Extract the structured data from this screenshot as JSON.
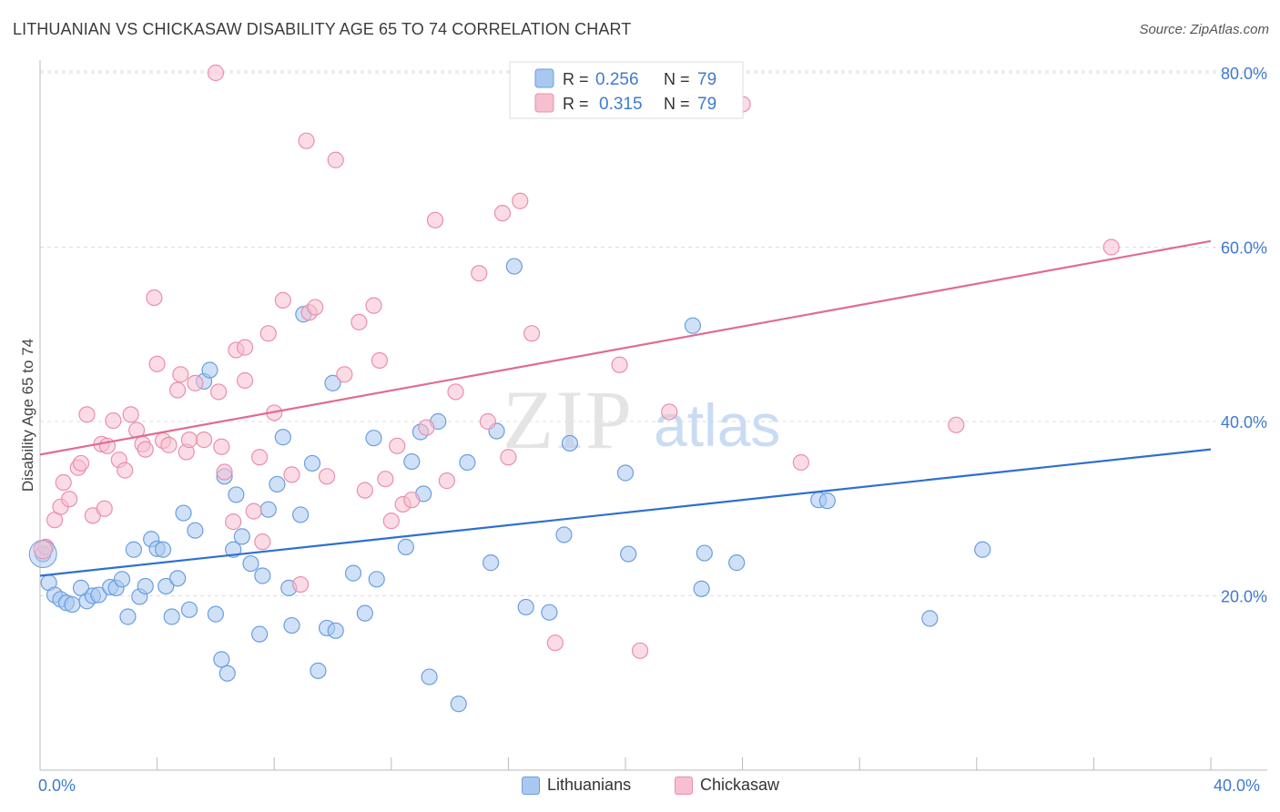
{
  "title": "LITHUANIAN VS CHICKASAW DISABILITY AGE 65 TO 74 CORRELATION CHART",
  "source": "Source: ZipAtlas.com",
  "watermark": {
    "zip": "ZIP",
    "atlas": "atlas"
  },
  "colors": {
    "blue_fill": "#a9c8f0",
    "blue_stroke": "#6b9ee0",
    "blue_line": "#2f6fd0",
    "pink_fill": "#f7bfd0",
    "pink_stroke": "#e98fae",
    "pink_line": "#e06b93",
    "tick_label": "#3f7ad1",
    "grid": "#dddddd"
  },
  "legend_top": {
    "rows": [
      {
        "r_label": "R =",
        "r_value": "0.256",
        "n_label": "N =",
        "n_value": "79",
        "series": "blue"
      },
      {
        "r_label": "R =",
        "r_value": "0.315",
        "n_label": "N =",
        "n_value": "79",
        "series": "pink"
      }
    ]
  },
  "legend_bottom": [
    {
      "label": "Lithuanians",
      "series": "blue"
    },
    {
      "label": "Chickasaw",
      "series": "pink"
    }
  ],
  "chart_data": {
    "type": "scatter",
    "title": "LITHUANIAN VS CHICKASAW DISABILITY AGE 65 TO 74 CORRELATION CHART",
    "xlabel": "",
    "ylabel": "Disability Age 65 to 74",
    "xlim": [
      0,
      40
    ],
    "ylim": [
      0,
      82
    ],
    "x_tick_labels": {
      "left": "0.0%",
      "right": "40.0%"
    },
    "y_ticks": [
      {
        "value": 20,
        "label": "20.0%"
      },
      {
        "value": 40,
        "label": "40.0%"
      },
      {
        "value": 60,
        "label": "60.0%"
      },
      {
        "value": 80,
        "label": "80.0%"
      }
    ],
    "grid": true,
    "legend_placement": "top-center",
    "series": [
      {
        "name": "Lithuanians",
        "color": "blue",
        "trend": {
          "x0": 0,
          "y0": 22.3,
          "x1": 40,
          "y1": 36.8
        },
        "points": [
          [
            0.1,
            24.8
          ],
          [
            0.3,
            21.5
          ],
          [
            0.5,
            20.1
          ],
          [
            0.7,
            19.6
          ],
          [
            0.9,
            19.2
          ],
          [
            1.1,
            19.0
          ],
          [
            1.4,
            20.9
          ],
          [
            1.6,
            19.4
          ],
          [
            1.8,
            20.0
          ],
          [
            2.0,
            20.1
          ],
          [
            2.4,
            21.0
          ],
          [
            2.6,
            20.9
          ],
          [
            2.8,
            21.9
          ],
          [
            3.0,
            17.6
          ],
          [
            3.2,
            25.3
          ],
          [
            3.4,
            19.9
          ],
          [
            3.6,
            21.1
          ],
          [
            3.8,
            26.5
          ],
          [
            4.0,
            25.4
          ],
          [
            4.2,
            25.3
          ],
          [
            4.3,
            21.1
          ],
          [
            4.5,
            17.6
          ],
          [
            4.7,
            22.0
          ],
          [
            4.9,
            29.5
          ],
          [
            5.1,
            18.4
          ],
          [
            5.3,
            27.5
          ],
          [
            5.6,
            44.6
          ],
          [
            5.8,
            45.9
          ],
          [
            6.0,
            17.9
          ],
          [
            6.2,
            12.7
          ],
          [
            6.4,
            11.1
          ],
          [
            6.3,
            33.7
          ],
          [
            6.6,
            25.3
          ],
          [
            6.7,
            31.6
          ],
          [
            6.9,
            26.8
          ],
          [
            7.2,
            23.7
          ],
          [
            7.5,
            15.6
          ],
          [
            7.6,
            22.3
          ],
          [
            7.8,
            29.9
          ],
          [
            8.1,
            32.8
          ],
          [
            8.3,
            38.2
          ],
          [
            8.5,
            20.9
          ],
          [
            8.6,
            16.6
          ],
          [
            8.9,
            29.3
          ],
          [
            9.0,
            52.3
          ],
          [
            9.3,
            35.2
          ],
          [
            9.5,
            11.4
          ],
          [
            9.8,
            16.3
          ],
          [
            10.0,
            44.4
          ],
          [
            10.1,
            16.0
          ],
          [
            10.7,
            22.6
          ],
          [
            11.1,
            18.0
          ],
          [
            11.4,
            38.1
          ],
          [
            11.5,
            21.9
          ],
          [
            12.5,
            25.6
          ],
          [
            12.7,
            35.4
          ],
          [
            13.0,
            38.8
          ],
          [
            13.1,
            31.7
          ],
          [
            13.3,
            10.7
          ],
          [
            13.6,
            40.0
          ],
          [
            14.3,
            7.6
          ],
          [
            14.6,
            35.3
          ],
          [
            15.4,
            23.8
          ],
          [
            15.6,
            38.9
          ],
          [
            16.2,
            57.8
          ],
          [
            16.6,
            18.7
          ],
          [
            17.4,
            18.1
          ],
          [
            17.9,
            27.0
          ],
          [
            18.1,
            37.5
          ],
          [
            20.0,
            34.1
          ],
          [
            20.1,
            24.8
          ],
          [
            22.3,
            51.0
          ],
          [
            22.6,
            20.8
          ],
          [
            22.7,
            24.9
          ],
          [
            23.8,
            23.8
          ],
          [
            26.6,
            31.0
          ],
          [
            26.9,
            30.9
          ],
          [
            30.4,
            17.4
          ],
          [
            32.2,
            25.3
          ]
        ]
      },
      {
        "name": "Chickasaw",
        "color": "pink",
        "trend": {
          "x0": 0,
          "y0": 36.2,
          "x1": 40,
          "y1": 60.7
        },
        "points": [
          [
            0.2,
            25.6
          ],
          [
            0.5,
            28.7
          ],
          [
            0.7,
            30.2
          ],
          [
            0.8,
            33.0
          ],
          [
            1.0,
            31.1
          ],
          [
            1.3,
            34.7
          ],
          [
            1.4,
            35.2
          ],
          [
            1.6,
            40.8
          ],
          [
            1.8,
            29.2
          ],
          [
            2.1,
            37.4
          ],
          [
            2.2,
            30.0
          ],
          [
            2.3,
            37.2
          ],
          [
            2.5,
            40.1
          ],
          [
            2.7,
            35.6
          ],
          [
            2.9,
            34.4
          ],
          [
            3.1,
            40.8
          ],
          [
            3.3,
            39.0
          ],
          [
            3.5,
            37.4
          ],
          [
            3.6,
            36.8
          ],
          [
            3.9,
            54.2
          ],
          [
            4.0,
            46.6
          ],
          [
            4.2,
            37.8
          ],
          [
            4.4,
            37.3
          ],
          [
            4.7,
            43.6
          ],
          [
            4.8,
            45.4
          ],
          [
            5.0,
            36.5
          ],
          [
            5.1,
            37.9
          ],
          [
            5.3,
            44.4
          ],
          [
            5.6,
            37.9
          ],
          [
            6.0,
            80.0
          ],
          [
            6.1,
            43.4
          ],
          [
            6.2,
            37.1
          ],
          [
            6.3,
            34.2
          ],
          [
            6.6,
            28.5
          ],
          [
            6.7,
            48.2
          ],
          [
            7.0,
            48.5
          ],
          [
            7.0,
            44.7
          ],
          [
            7.3,
            29.7
          ],
          [
            7.5,
            35.9
          ],
          [
            7.6,
            26.2
          ],
          [
            7.8,
            50.1
          ],
          [
            8.0,
            41.0
          ],
          [
            8.3,
            53.9
          ],
          [
            8.6,
            33.9
          ],
          [
            8.9,
            21.3
          ],
          [
            9.1,
            72.2
          ],
          [
            9.2,
            52.5
          ],
          [
            9.4,
            53.1
          ],
          [
            9.8,
            33.7
          ],
          [
            10.1,
            70.0
          ],
          [
            10.4,
            45.4
          ],
          [
            10.9,
            51.4
          ],
          [
            11.1,
            32.1
          ],
          [
            11.4,
            53.3
          ],
          [
            11.6,
            47.0
          ],
          [
            11.8,
            33.4
          ],
          [
            12.0,
            28.6
          ],
          [
            12.2,
            37.2
          ],
          [
            12.4,
            30.5
          ],
          [
            12.7,
            31.0
          ],
          [
            13.2,
            39.3
          ],
          [
            13.5,
            63.1
          ],
          [
            13.9,
            33.2
          ],
          [
            14.2,
            43.4
          ],
          [
            15.0,
            57.0
          ],
          [
            15.3,
            40.0
          ],
          [
            15.8,
            63.9
          ],
          [
            16.0,
            35.9
          ],
          [
            16.4,
            65.3
          ],
          [
            16.8,
            50.1
          ],
          [
            17.6,
            14.6
          ],
          [
            19.0,
            76.4
          ],
          [
            19.8,
            46.5
          ],
          [
            20.5,
            13.7
          ],
          [
            21.5,
            41.1
          ],
          [
            24.0,
            76.4
          ],
          [
            26.0,
            35.3
          ],
          [
            36.6,
            60.0
          ],
          [
            31.3,
            39.6
          ]
        ]
      }
    ]
  }
}
